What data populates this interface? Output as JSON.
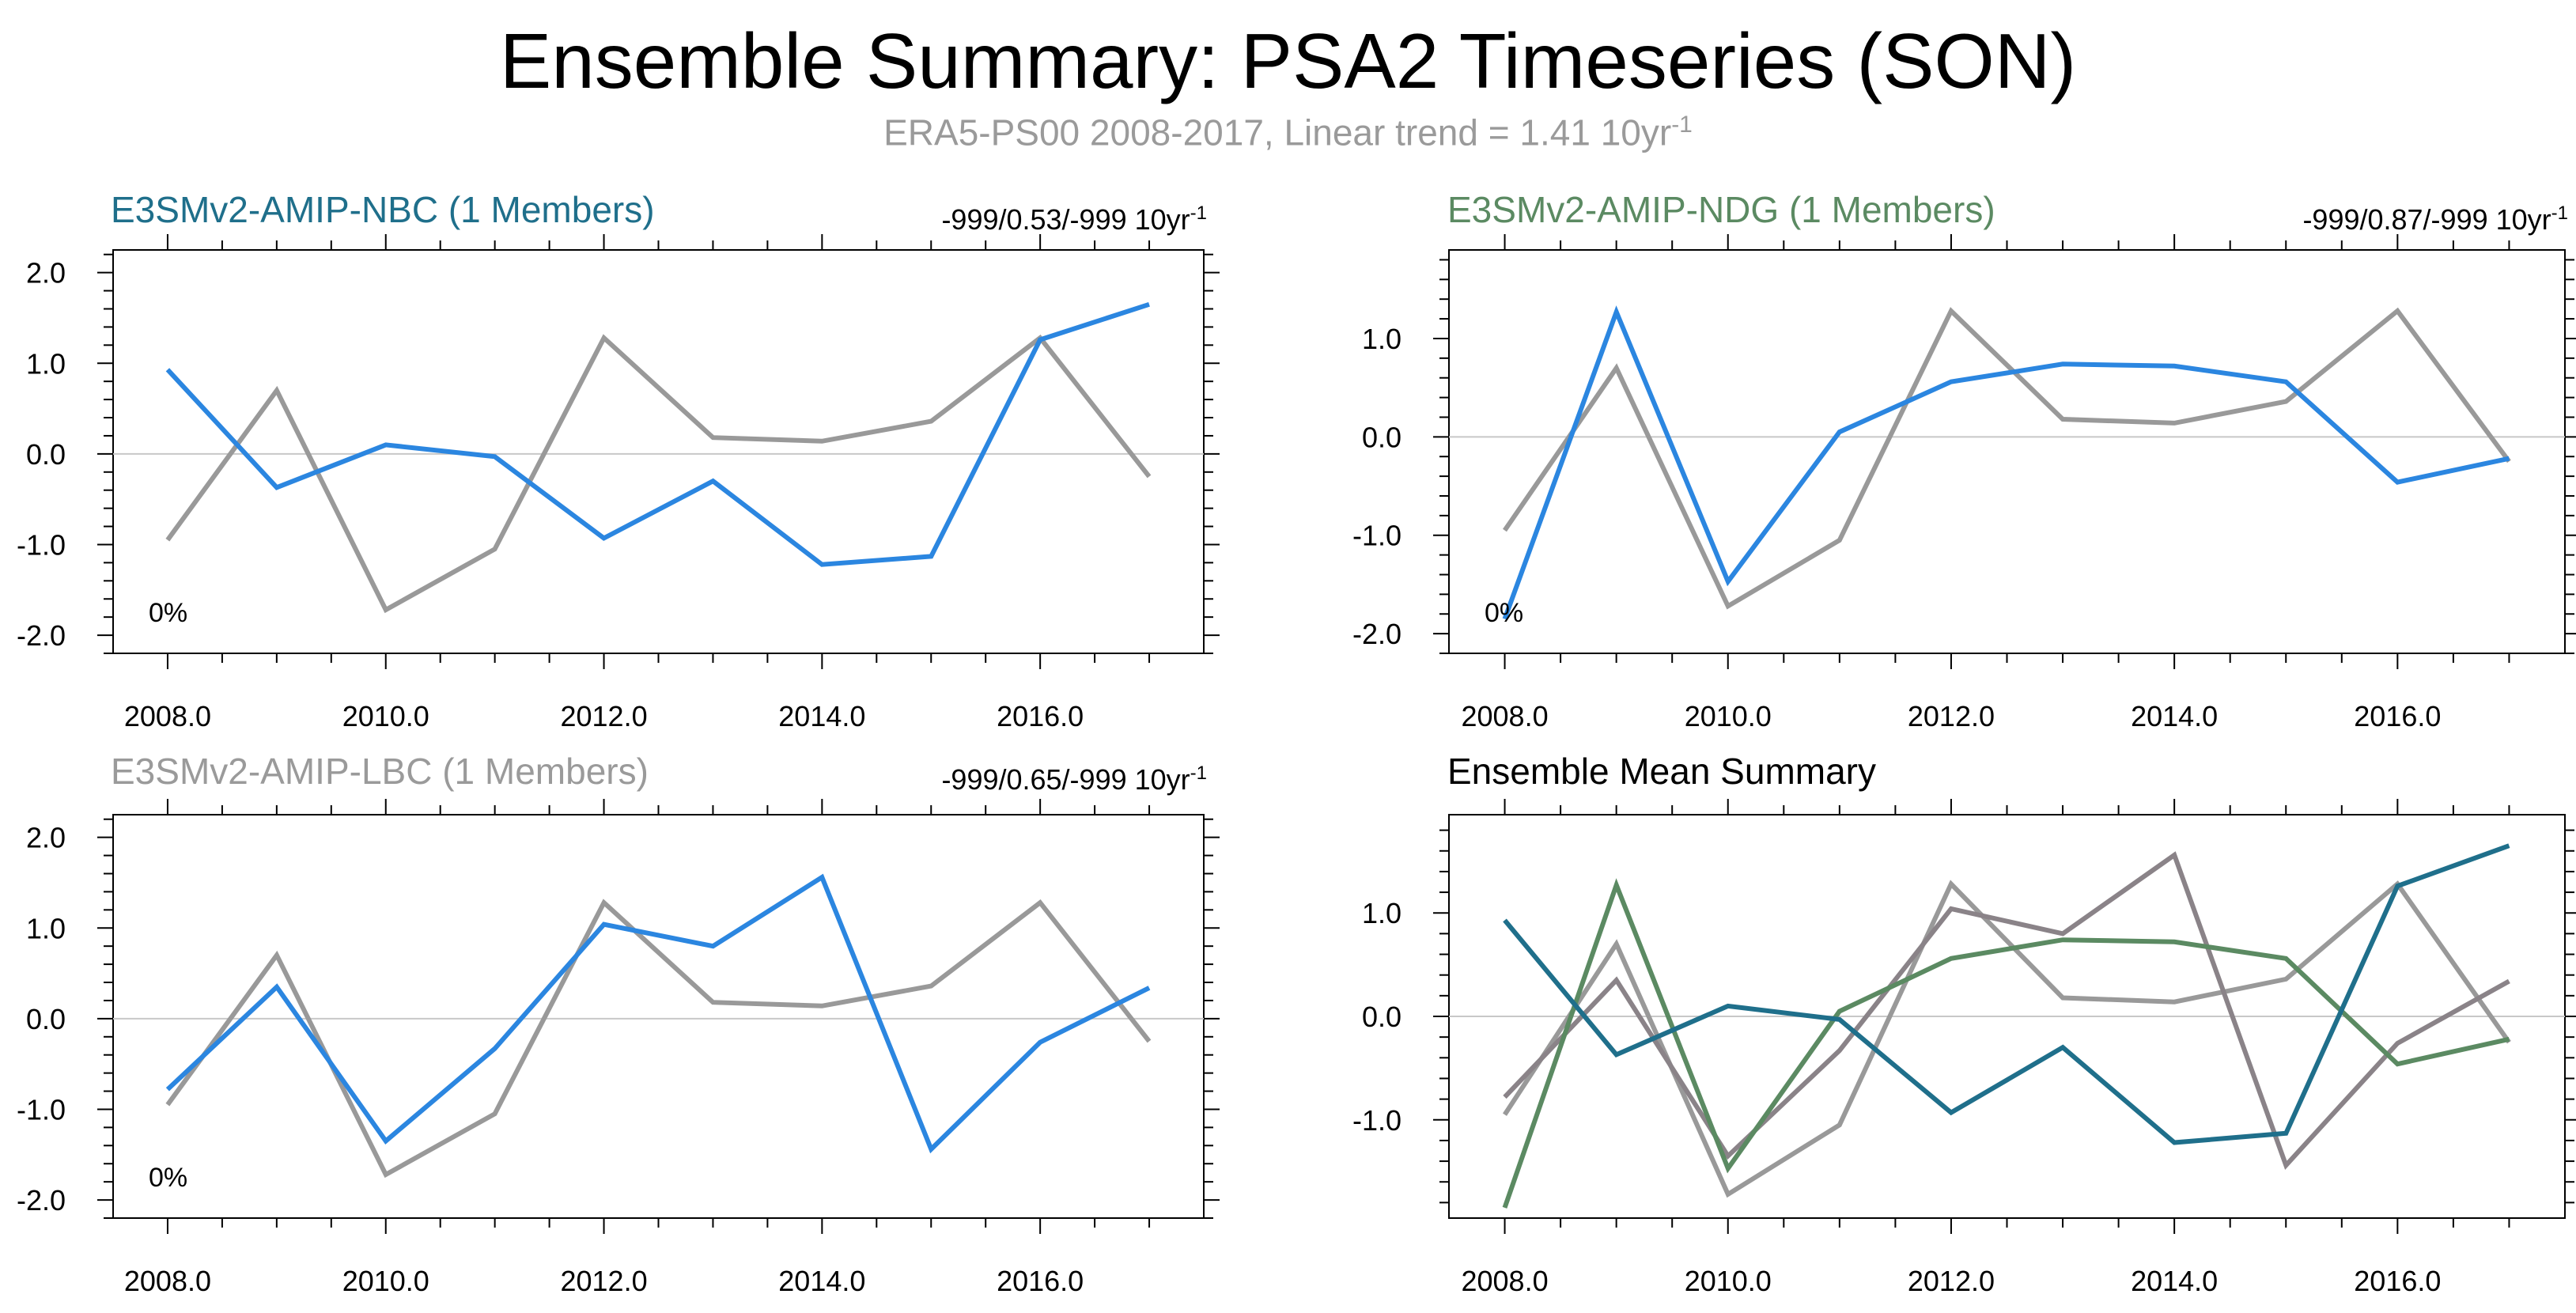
{
  "title": "Ensemble Summary: PSA2 Timeseries (SON)",
  "subtitle": {
    "text": "ERA5-PS00 2008-2017, Linear trend = 1.41 10yr",
    "sup": "-1"
  },
  "colors": {
    "nbc": "#1f6f8b",
    "ndg": "#5b8a62",
    "lbc": "#9a9a9a",
    "model_line": "#2b86e0",
    "obs_line": "#999999",
    "mean_lbc": "#8a8388",
    "black": "#000000"
  },
  "chart_data": [
    {
      "id": "nbc",
      "type": "line",
      "title": "E3SMv2-AMIP-NBC (1 Members)",
      "title_color": "#1f6f8b",
      "trend_text": "-999/0.53/-999 10yr",
      "trend_sup": "-1",
      "corner_label": "0%",
      "x": [
        2008,
        2009,
        2010,
        2011,
        2012,
        2013,
        2014,
        2015,
        2016,
        2017
      ],
      "xlim": [
        2007.5,
        2017.5
      ],
      "ylim": [
        -2.2,
        2.25
      ],
      "xticks": [
        2008,
        2010,
        2012,
        2014,
        2016
      ],
      "xtick_labels": [
        "2008.0",
        "2010.0",
        "2012.0",
        "2014.0",
        "2016.0"
      ],
      "yticks": [
        -2,
        -1,
        0,
        1,
        2
      ],
      "ytick_labels": [
        "-2.0",
        "-1.0",
        "0.0",
        "1.0",
        "2.0"
      ],
      "series": [
        {
          "name": "ERA5-PS00",
          "color": "#999999",
          "values": [
            -0.95,
            0.7,
            -1.72,
            -1.05,
            1.28,
            0.18,
            0.14,
            0.36,
            1.28,
            -0.25
          ]
        },
        {
          "name": "E3SMv2-AMIP-NBC",
          "color": "#2b86e0",
          "values": [
            0.93,
            -0.37,
            0.1,
            -0.03,
            -0.93,
            -0.3,
            -1.22,
            -1.13,
            1.26,
            1.65
          ]
        }
      ]
    },
    {
      "id": "ndg",
      "type": "line",
      "title": "E3SMv2-AMIP-NDG (1 Members)",
      "title_color": "#5b8a62",
      "trend_text": "-999/0.87/-999 10yr",
      "trend_sup": "-1",
      "corner_label": "0%",
      "x": [
        2008,
        2009,
        2010,
        2011,
        2012,
        2013,
        2014,
        2015,
        2016,
        2017
      ],
      "xlim": [
        2007.5,
        2017.5
      ],
      "ylim": [
        -2.2,
        1.9
      ],
      "xticks": [
        2008,
        2010,
        2012,
        2014,
        2016
      ],
      "xtick_labels": [
        "2008.0",
        "2010.0",
        "2012.0",
        "2014.0",
        "2016.0"
      ],
      "yticks": [
        -2,
        -1,
        0,
        1
      ],
      "ytick_labels": [
        "-2.0",
        "-1.0",
        "0.0",
        "1.0"
      ],
      "series": [
        {
          "name": "ERA5-PS00",
          "color": "#999999",
          "values": [
            -0.95,
            0.7,
            -1.72,
            -1.05,
            1.28,
            0.18,
            0.14,
            0.36,
            1.28,
            -0.25
          ]
        },
        {
          "name": "E3SMv2-AMIP-NDG",
          "color": "#2b86e0",
          "values": [
            -1.85,
            1.27,
            -1.47,
            0.05,
            0.56,
            0.74,
            0.72,
            0.56,
            -0.46,
            -0.22
          ]
        }
      ]
    },
    {
      "id": "lbc",
      "type": "line",
      "title": "E3SMv2-AMIP-LBC (1 Members)",
      "title_color": "#9a9a9a",
      "trend_text": "-999/0.65/-999 10yr",
      "trend_sup": "-1",
      "corner_label": "0%",
      "x": [
        2008,
        2009,
        2010,
        2011,
        2012,
        2013,
        2014,
        2015,
        2016,
        2017
      ],
      "xlim": [
        2007.5,
        2017.5
      ],
      "ylim": [
        -2.2,
        2.25
      ],
      "xticks": [
        2008,
        2010,
        2012,
        2014,
        2016
      ],
      "xtick_labels": [
        "2008.0",
        "2010.0",
        "2012.0",
        "2014.0",
        "2016.0"
      ],
      "yticks": [
        -2,
        -1,
        0,
        1,
        2
      ],
      "ytick_labels": [
        "-2.0",
        "-1.0",
        "0.0",
        "1.0",
        "2.0"
      ],
      "series": [
        {
          "name": "ERA5-PS00",
          "color": "#999999",
          "values": [
            -0.95,
            0.7,
            -1.72,
            -1.05,
            1.28,
            0.18,
            0.14,
            0.36,
            1.28,
            -0.25
          ]
        },
        {
          "name": "E3SMv2-AMIP-LBC",
          "color": "#2b86e0",
          "values": [
            -0.78,
            0.35,
            -1.35,
            -0.33,
            1.04,
            0.8,
            1.56,
            -1.44,
            -0.26,
            0.34
          ]
        }
      ]
    },
    {
      "id": "mean",
      "type": "line",
      "title": "Ensemble Mean Summary",
      "title_color": "#000000",
      "trend_text": "",
      "trend_sup": "",
      "corner_label": "",
      "x": [
        2008,
        2009,
        2010,
        2011,
        2012,
        2013,
        2014,
        2015,
        2016,
        2017
      ],
      "xlim": [
        2007.5,
        2017.5
      ],
      "ylim": [
        -1.95,
        1.95
      ],
      "xticks": [
        2008,
        2010,
        2012,
        2014,
        2016
      ],
      "xtick_labels": [
        "2008.0",
        "2010.0",
        "2012.0",
        "2014.0",
        "2016.0"
      ],
      "yticks": [
        -1,
        0,
        1
      ],
      "ytick_labels": [
        "-1.0",
        "0.0",
        "1.0"
      ],
      "series": [
        {
          "name": "ERA5-PS00",
          "color": "#999999",
          "values": [
            -0.95,
            0.7,
            -1.72,
            -1.05,
            1.28,
            0.18,
            0.14,
            0.36,
            1.28,
            -0.25
          ]
        },
        {
          "name": "E3SMv2-AMIP-LBC",
          "color": "#8a8388",
          "values": [
            -0.78,
            0.35,
            -1.35,
            -0.33,
            1.04,
            0.8,
            1.56,
            -1.44,
            -0.26,
            0.34
          ]
        },
        {
          "name": "E3SMv2-AMIP-NDG",
          "color": "#5b8a62",
          "values": [
            -1.85,
            1.27,
            -1.47,
            0.05,
            0.56,
            0.74,
            0.72,
            0.56,
            -0.46,
            -0.22
          ]
        },
        {
          "name": "E3SMv2-AMIP-NBC",
          "color": "#1f6f8b",
          "values": [
            0.93,
            -0.37,
            0.1,
            -0.03,
            -0.93,
            -0.3,
            -1.22,
            -1.13,
            1.26,
            1.65
          ]
        }
      ]
    }
  ]
}
